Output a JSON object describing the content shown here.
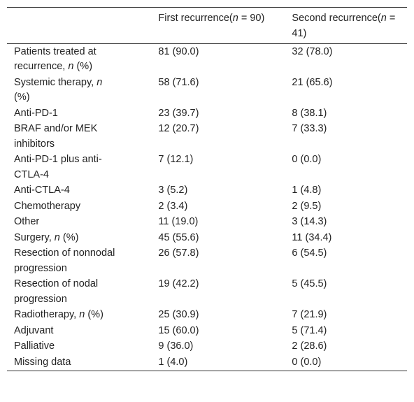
{
  "table": {
    "columns": [
      [
        "First recurrence(",
        "n",
        " = 90)"
      ],
      [
        "Second recurrence(",
        "n",
        " = 41)"
      ]
    ],
    "rows": [
      [
        [
          "Patients treated at recurrence, ",
          "n",
          " (%)"
        ],
        "81 (90.0)",
        "32 (78.0)"
      ],
      [
        [
          "Systemic therapy, ",
          "n",
          " (%)"
        ],
        "58 (71.6)",
        "21 (65.6)"
      ],
      [
        [
          "Anti-PD-1"
        ],
        "23 (39.7)",
        "8 (38.1)"
      ],
      [
        [
          "BRAF and/or MEK inhibitors"
        ],
        "12 (20.7)",
        "7 (33.3)"
      ],
      [
        [
          "Anti-PD-1 plus anti-CTLA-4"
        ],
        "7 (12.1)",
        "0 (0.0)"
      ],
      [
        [
          "Anti-CTLA-4"
        ],
        "3 (5.2)",
        "1 (4.8)"
      ],
      [
        [
          "Chemotherapy"
        ],
        "2 (3.4)",
        "2 (9.5)"
      ],
      [
        [
          "Other"
        ],
        "11 (19.0)",
        "3 (14.3)"
      ],
      [
        [
          "Surgery, ",
          "n",
          " (%)"
        ],
        "45 (55.6)",
        "11 (34.4)"
      ],
      [
        [
          "Resection of nonnodal progression"
        ],
        "26 (57.8)",
        "6 (54.5)"
      ],
      [
        [
          "Resection of nodal progression"
        ],
        "19 (42.2)",
        "5 (45.5)"
      ],
      [
        [
          "Radiotherapy, ",
          "n",
          " (%)"
        ],
        "25 (30.9)",
        "7 (21.9)"
      ],
      [
        [
          "Adjuvant"
        ],
        "15 (60.0)",
        "5 (71.4)"
      ],
      [
        [
          "Palliative"
        ],
        "9 (36.0)",
        "2 (28.6)"
      ],
      [
        [
          "Missing data"
        ],
        "1 (4.0)",
        "0 (0.0)"
      ]
    ]
  }
}
